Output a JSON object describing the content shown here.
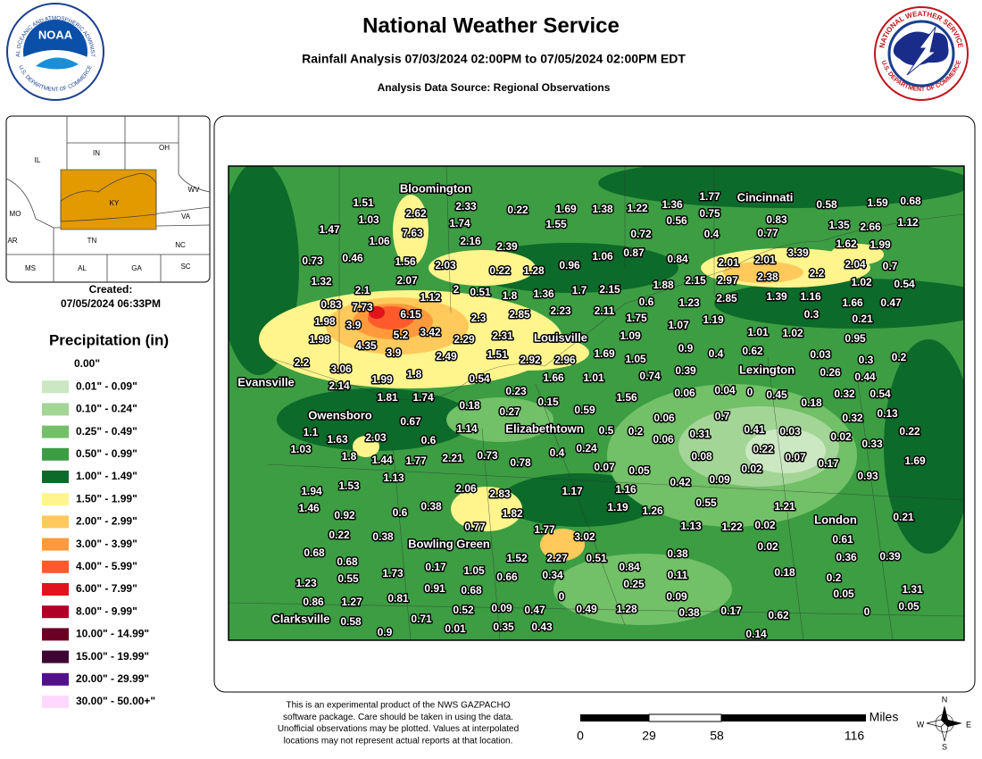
{
  "header": {
    "title": "National Weather Service",
    "subtitle": "Rainfall Analysis 07/03/2024 02:00PM to 07/05/2024 02:00PM EDT",
    "source": "Analysis Data Source: Regional Observations"
  },
  "logos": {
    "noaa": {
      "name": "NOAA",
      "ring_top": "NATIONAL OCEANIC AND ATMOSPHERIC ADMINISTRATION",
      "ring_bottom": "U.S. DEPARTMENT OF COMMERCE"
    },
    "nws": {
      "ring_top": "NATIONAL WEATHER SERVICE",
      "ring_bottom": "U.S. DEPARTMENT OF COMMERCE"
    }
  },
  "inset": {
    "states": [
      "IL",
      "IN",
      "OH",
      "MO",
      "KY",
      "WV",
      "VA",
      "AR",
      "TN",
      "NC",
      "MS",
      "AL",
      "GA",
      "SC"
    ]
  },
  "created": {
    "label": "Created:",
    "date": "07/05/2024 06:33PM"
  },
  "legend": {
    "title": "Precipitation (in)",
    "items": [
      {
        "label": "0.00\"",
        "color": "#ffffff"
      },
      {
        "label": "0.01\" - 0.09\"",
        "color": "#cbe8c3"
      },
      {
        "label": "0.10\" - 0.24\"",
        "color": "#a3d597"
      },
      {
        "label": "0.25\" - 0.49\"",
        "color": "#72c067"
      },
      {
        "label": "0.50\" - 0.99\"",
        "color": "#3c9d43"
      },
      {
        "label": "1.00\" - 1.49\"",
        "color": "#0c6a2a"
      },
      {
        "label": "1.50\" - 1.99\"",
        "color": "#fff58c"
      },
      {
        "label": "2.00\" - 2.99\"",
        "color": "#ffc95c"
      },
      {
        "label": "3.00\" - 3.99\"",
        "color": "#ff9a3c"
      },
      {
        "label": "4.00\" - 5.99\"",
        "color": "#ff5a2c"
      },
      {
        "label": "6.00\" - 7.99\"",
        "color": "#e0141c"
      },
      {
        "label": "8.00\" - 9.99\"",
        "color": "#b00028"
      },
      {
        "label": "10.00\" - 14.99\"",
        "color": "#6a0024"
      },
      {
        "label": "15.00\" - 19.99\"",
        "color": "#3e0432"
      },
      {
        "label": "20.00\" - 29.99\"",
        "color": "#54108c"
      },
      {
        "label": "30.00\" - 50.00+\"",
        "color": "#ffd8ff"
      }
    ]
  },
  "map": {
    "cities": [
      "Bloomington",
      "Cincinnati",
      "Louisville",
      "Lexington",
      "Evansville",
      "Owensboro",
      "Elizabethtown",
      "London",
      "Bowling Green",
      "Clarksville"
    ],
    "stations": [
      1.51,
      2.33,
      0.22,
      1.69,
      1.38,
      1.22,
      1.36,
      1.77,
      0.58,
      1.59,
      0.68,
      1.03,
      2.62,
      1.74,
      1.55,
      0.56,
      0.75,
      0.83,
      1.35,
      2.66,
      1.12,
      1.47,
      1.06,
      7.63,
      2.16,
      2.39,
      0.72,
      0.4,
      0.77,
      1.62,
      1.99,
      0.73,
      0.46,
      1.56,
      2.03,
      0.22,
      1.28,
      0.96,
      1.06,
      0.87,
      0.84,
      2.01,
      2.01,
      3.39,
      2.04,
      0.7,
      1.32,
      2.07,
      2.2,
      2.38,
      2.15,
      2.97,
      1.88,
      1.02,
      0.54,
      2.1,
      2,
      0.51,
      1.8,
      1.36,
      1.7,
      2.15,
      1.12,
      0.83,
      7.73,
      6.15,
      2.85,
      1.39,
      1.16,
      1.66,
      0.47,
      0.6,
      1.23,
      2.11,
      2.85,
      2.23,
      1.98,
      3.9,
      2.3,
      1.75,
      1.19,
      0.3,
      0.21,
      1.07,
      1.98,
      5.2,
      3.42,
      2.29,
      2.31,
      1.09,
      1.01,
      1.02,
      0.95,
      4.35,
      3.9,
      2.49,
      1.51,
      2.92,
      2.96,
      1.69,
      1.05,
      0.9,
      0.4,
      0.62,
      0.03,
      0.3,
      0.2,
      2.2,
      3.06,
      1.8,
      0.54,
      1.66,
      1.01,
      0.74,
      0.39,
      0.26,
      0.44,
      2.14,
      1.99,
      0.23,
      0.06,
      0.04,
      0,
      0.45,
      0.32,
      0.54,
      1.81,
      1.74,
      0.15,
      1.56,
      0.18,
      0.18,
      0.27,
      0.59,
      0.06,
      0.7,
      0.32,
      0.13,
      0.67,
      1.14,
      0.5,
      0.2,
      0.31,
      0.41,
      0.03,
      0.22,
      1.1,
      1.63,
      2.03,
      0.6,
      0.06,
      0.02,
      0.33,
      1.03,
      0.24,
      0.22,
      1.8,
      1.44,
      1.77,
      2.21,
      0.73,
      0.78,
      0.4,
      0.08,
      0.07,
      0.17,
      1.69,
      0.07,
      0.05,
      0.02,
      1.13,
      0.93,
      0.42,
      0.09,
      1.94,
      1.53,
      2.06,
      2.83,
      1.17,
      1.16,
      1.46,
      0.92,
      0.6,
      0.38,
      1.82,
      1.19,
      1.26,
      0.55,
      1.21,
      0.21,
      0.77,
      1.77,
      1.13,
      1.22,
      0.02,
      0.22,
      0.38,
      3.02,
      0.61,
      0.68,
      0.02,
      0.38,
      0.36,
      0.39,
      0.68,
      1.52,
      2.27,
      0.51,
      0.17,
      1.05,
      0.84,
      1.73,
      0.66,
      0.34,
      0.11,
      0.18,
      0.2,
      0.55,
      1.23,
      0.91,
      0.68,
      0.25,
      0.86,
      1.27,
      0.81,
      0,
      0.09,
      0.05,
      1.31,
      0.52,
      0.09,
      0.47,
      0.49,
      1.28,
      0.38,
      0.17,
      0.62,
      0,
      0.05,
      0.58,
      0.71,
      0.35,
      0.43,
      0.01,
      0.9,
      0.14
    ]
  },
  "disclaimer": [
    "This is an experimental product of the NWS GAZPACHO",
    "software package. Care should be taken in using the data.",
    "Unofficial observations may be plotted. Values at interpolated",
    "locations may not represent actual reports at that location."
  ],
  "scale": {
    "unit": "Miles",
    "ticks": [
      "0",
      "29",
      "58",
      "116"
    ]
  },
  "compass": [
    "N",
    "E",
    "S",
    "W"
  ]
}
